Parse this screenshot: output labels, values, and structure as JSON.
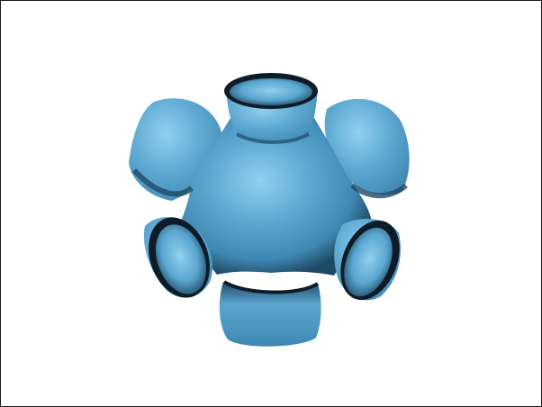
{
  "viewport": {
    "background": "#ffffff",
    "border_color": "#1a1a1a"
  },
  "surface": {
    "subject": "blue-shaded-3d-minimal-surface-with-six-tubular-openings",
    "colors": {
      "highlight": "#8fd0f0",
      "base": "#5aa6cf",
      "mid": "#3f88b3",
      "shadow": "#1f4a66",
      "edge": "#0d1c26"
    }
  }
}
